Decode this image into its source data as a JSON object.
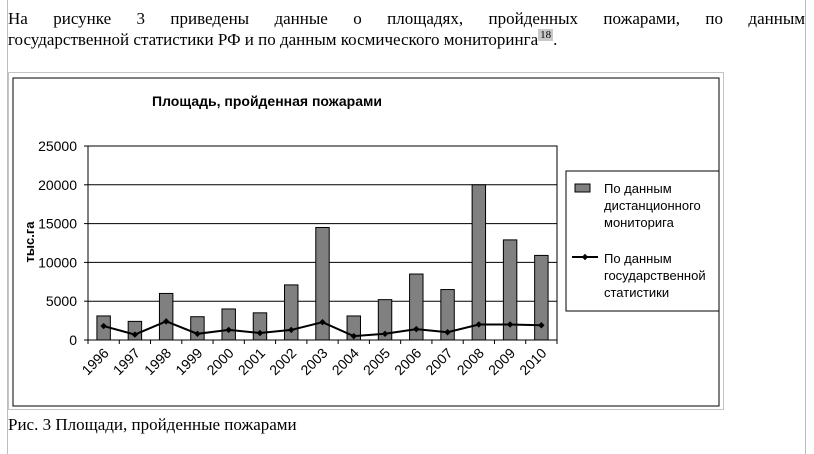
{
  "document": {
    "paragraph_line1": "На рисунке 3 приведены данные о площадях, пройденных пожарами, по данным",
    "paragraph_line2": "государственной статистики РФ и по данным космического мониторинга",
    "footnote_ref": "18",
    "caption": "Рис. 3 Площади, пройденные пожарами"
  },
  "chart_data": {
    "type": "bar",
    "title": "Площадь, пройденная пожарами",
    "xlabel": "",
    "ylabel": "тыс.га",
    "ylim": [
      0,
      25000
    ],
    "yticks": [
      0,
      5000,
      10000,
      15000,
      20000,
      25000
    ],
    "grid": true,
    "legend_position": "right",
    "categories": [
      "1996",
      "1997",
      "1998",
      "1999",
      "2000",
      "2001",
      "2002",
      "2003",
      "2004",
      "2005",
      "2006",
      "2007",
      "2008",
      "2009",
      "2010"
    ],
    "series": [
      {
        "name": "По данным дистанционного мониторига",
        "kind": "bar",
        "color": "#808080",
        "values": [
          3100,
          2400,
          6000,
          3000,
          4000,
          3500,
          7100,
          14500,
          3100,
          5200,
          8500,
          6500,
          20000,
          12900,
          10900
        ]
      },
      {
        "name": "По данным государственной статистики",
        "kind": "line",
        "color": "#000000",
        "values": [
          1800,
          700,
          2400,
          800,
          1300,
          900,
          1300,
          2300,
          500,
          800,
          1400,
          1000,
          2000,
          2000,
          1900
        ]
      }
    ],
    "legend_lines": [
      [
        "По данным",
        "дистанционного",
        "мониторига"
      ],
      [
        "По данным",
        "государственной",
        "статистики"
      ]
    ]
  }
}
